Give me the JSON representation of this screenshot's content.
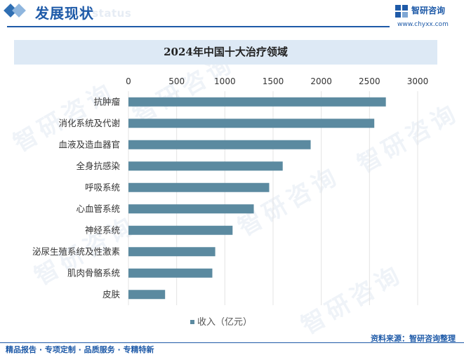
{
  "header": {
    "title": "发展现状",
    "title_en": "ent status",
    "brand_name": "智研咨询",
    "brand_url": "www.chyxx.com",
    "logo_icon": "zhiyan-logo-icon"
  },
  "watermark": {
    "text": "智研咨询"
  },
  "footer": {
    "left": "精品报告 · 专项定制 · 品质服务 · 专精特新",
    "source": "资料来源：智研咨询整理"
  },
  "colors": {
    "bar": "#5b8aa0",
    "brand": "#1e5aa8",
    "title_band": "#dde9f5"
  },
  "chart_data": {
    "type": "bar",
    "orientation": "horizontal",
    "title": "2024年中国十大治疗领域",
    "categories": [
      "抗肿瘤",
      "消化系统及代谢",
      "血液及造血器官",
      "全身抗感染",
      "呼吸系统",
      "心血管系统",
      "神经系统",
      "泌尿生殖系统及性激素",
      "肌肉骨骼系统",
      "皮肤"
    ],
    "series": [
      {
        "name": "收入（亿元）",
        "values": [
          2670,
          2550,
          1890,
          1600,
          1460,
          1300,
          1080,
          900,
          870,
          380
        ]
      }
    ],
    "xlim": [
      0,
      3000
    ],
    "xticks": [
      0,
      500,
      1000,
      1500,
      2000,
      2500,
      3000
    ],
    "grid": true,
    "legend": "bottom"
  }
}
